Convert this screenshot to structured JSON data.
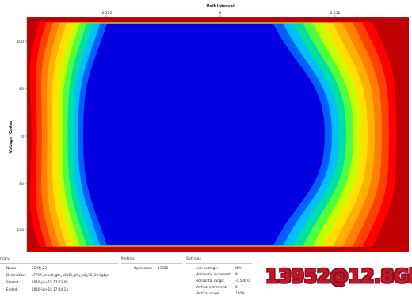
{
  "plot": {
    "x_title": "Unit Interval",
    "y_title": "Voltage (Codes)",
    "x_ticks": [
      "-0.312",
      "0",
      "0.312"
    ],
    "y_ticks": [
      "100",
      "50",
      "0",
      "-50",
      "-100"
    ],
    "colors": {
      "background": "#c00000",
      "contours": [
        "#ff0000",
        "#ff4000",
        "#ff8000",
        "#ffb000",
        "#ffe000",
        "#c8ff00",
        "#50ff40",
        "#00e0a0",
        "#00c0ff",
        "#0060ff",
        "#0000e0"
      ]
    }
  },
  "summary": {
    "header": "mary",
    "rows": [
      {
        "label": "Name:",
        "value": "SCAN_23"
      },
      {
        "label": "Description:",
        "value": "xFPGA_mpod_gth_x0y52_phy_x0y36_12.8gbps"
      },
      {
        "label": "Started:",
        "value": "2016-Jun-15 17:43:05"
      },
      {
        "label": "Ended:",
        "value": "2016-Jun-15 17:44:13"
      }
    ]
  },
  "metrics": {
    "header": "Metrics",
    "rows": [
      {
        "label": "Open area:",
        "value": "13952"
      }
    ]
  },
  "settings": {
    "header": "Settings",
    "rows": [
      {
        "label": "Link settings:",
        "value": "N/A"
      },
      {
        "label": "Horizontal increment:",
        "value": "8"
      },
      {
        "label": "Horizontal range:",
        "value": "-0.500 UI"
      },
      {
        "label": "Vertical increment:",
        "value": "8"
      },
      {
        "label": "Vertical range:",
        "value": "100%"
      }
    ]
  },
  "result_label": "13952@12.8Gb"
}
